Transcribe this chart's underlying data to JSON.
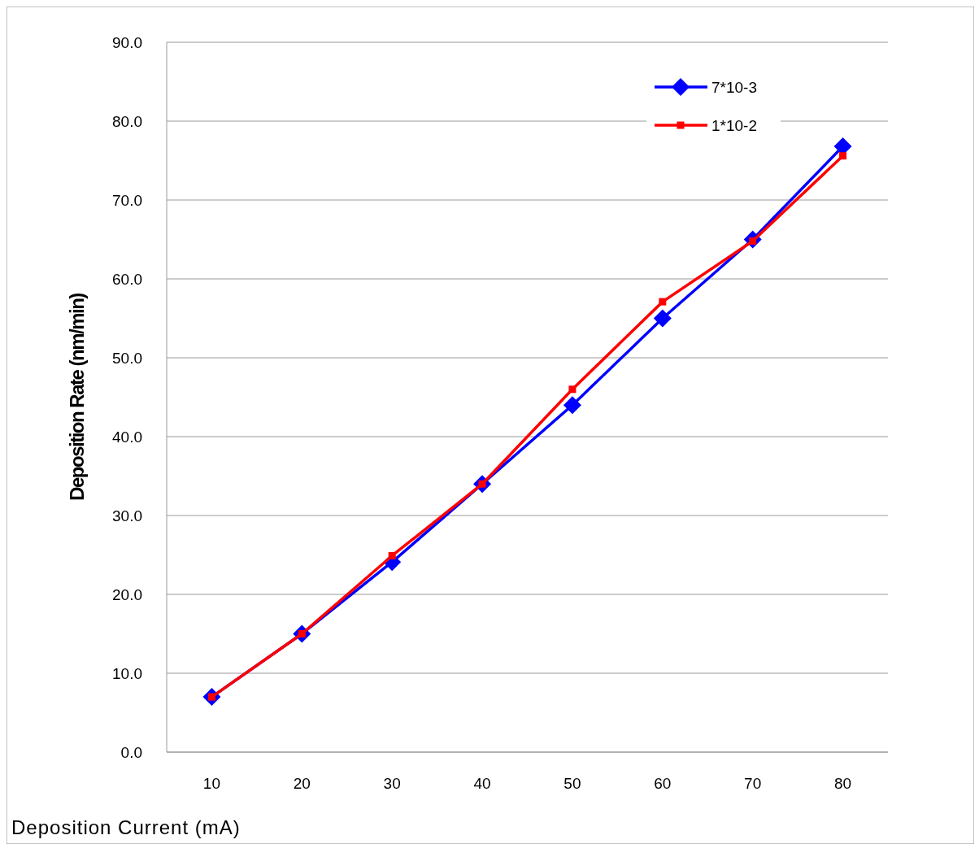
{
  "chart_data": {
    "type": "line",
    "xlabel": "Deposition Current (mA)",
    "ylabel": "Deposition Rate (nm/min)",
    "categories": [
      "10",
      "20",
      "30",
      "40",
      "50",
      "60",
      "70",
      "80"
    ],
    "series": [
      {
        "name": "7*10-3",
        "color": "#0000ff",
        "marker": "diamond",
        "values": [
          7,
          15,
          24.1,
          34,
          44,
          55,
          65,
          76.8
        ]
      },
      {
        "name": "1*10-2",
        "color": "#ff0000",
        "marker": "square",
        "values": [
          7,
          15,
          24.9,
          34,
          46,
          57.1,
          64.8,
          75.6
        ]
      }
    ],
    "ylim": [
      0,
      90
    ],
    "yticks": [
      {
        "value": 0,
        "label": "0.0"
      },
      {
        "value": 10,
        "label": "10.0"
      },
      {
        "value": 20,
        "label": "20.0"
      },
      {
        "value": 30,
        "label": "30.0"
      },
      {
        "value": 40,
        "label": "40.0"
      },
      {
        "value": 50,
        "label": "50.0"
      },
      {
        "value": 60,
        "label": "60.0"
      },
      {
        "value": 70,
        "label": "70.0"
      },
      {
        "value": 80,
        "label": "80.0"
      },
      {
        "value": 90,
        "label": "90.0"
      }
    ],
    "grid": "y",
    "legend": "top right"
  }
}
